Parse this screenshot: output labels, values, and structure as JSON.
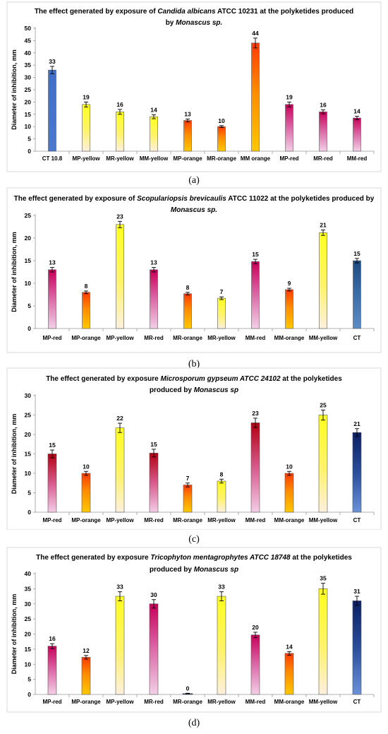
{
  "captions": [
    "(a)",
    "(b)",
    "(c)",
    "(d)"
  ],
  "chart_data": [
    {
      "type": "bar",
      "title_parts": [
        {
          "text": "The effect generated by exposure of ",
          "italic": false
        },
        {
          "text": "Candida albicans",
          "italic": true
        },
        {
          "text": " ATCC 10231 at the polyketides produced",
          "italic": false
        }
      ],
      "title_line2_parts": [
        {
          "text": "by ",
          "italic": false
        },
        {
          "text": "Monascus sp.",
          "italic": true
        }
      ],
      "ylabel": "Diameter of inhibition, mm",
      "ylim": [
        0,
        50
      ],
      "ytick_step": 5,
      "categories": [
        "CT 10.8",
        "MP-yellow",
        "MR-yellow",
        "MM-yellow",
        "MP-orange",
        "MR-orange",
        "MM orange",
        "MP-red",
        "MR-red",
        "MM-red"
      ],
      "values": [
        33,
        19,
        16,
        14,
        12.5,
        10,
        44,
        19,
        16,
        13.5
      ],
      "labels": [
        "33",
        "19",
        "16",
        "14",
        "13",
        "10",
        "44",
        "19",
        "16",
        "14"
      ],
      "errors": [
        1.5,
        1,
        1,
        0.8,
        0.6,
        0.4,
        2,
        1,
        0.8,
        0.7
      ],
      "colors": [
        "ct-blue",
        "yellow",
        "yellow",
        "yellow",
        "orange",
        "orange",
        "orange",
        "magenta",
        "magenta",
        "magenta"
      ]
    },
    {
      "type": "bar",
      "title_parts": [
        {
          "text": "The effect generated by exposure of ",
          "italic": false
        },
        {
          "text": "Scopulariopsis brevicaulis",
          "italic": true
        },
        {
          "text": " ATCC 11022 at the polyketides produced by",
          "italic": false
        }
      ],
      "title_line2_parts": [
        {
          "text": "Monascus sp.",
          "italic": true
        }
      ],
      "ylabel": "Diameter of inhibition, mm",
      "ylim": [
        0,
        25
      ],
      "ytick_step": 5,
      "categories": [
        "MP-red",
        "MP-orange",
        "MP-yellow",
        "MR-red",
        "MR-orange",
        "MR-yellow",
        "MM-red",
        "MM-orange",
        "MM-yellow",
        "CT"
      ],
      "values": [
        13,
        8,
        23,
        13,
        7.7,
        6.7,
        14.8,
        8.6,
        21.2,
        15
      ],
      "labels": [
        "13",
        "8",
        "23",
        "13",
        "8",
        "7",
        "15",
        "9",
        "21",
        "15"
      ],
      "errors": [
        0.5,
        0.3,
        0.7,
        0.5,
        0.3,
        0.3,
        0.5,
        0.3,
        0.6,
        0.5
      ],
      "colors": [
        "magenta",
        "orange",
        "yellow",
        "magenta",
        "orange",
        "yellow",
        "magenta",
        "orange",
        "yellow",
        "ct-dark"
      ]
    },
    {
      "type": "bar",
      "title_parts": [
        {
          "text": "The effect generated by exposure  ",
          "italic": false
        },
        {
          "text": "Microsporum gypseum ATCC 24102",
          "italic": true
        },
        {
          "text": " at the polyketides",
          "italic": false
        }
      ],
      "title_line2_parts": [
        {
          "text": "produced by ",
          "italic": false
        },
        {
          "text": "Monascus sp",
          "italic": true
        }
      ],
      "ylabel": "Diameter of inhibition, mm",
      "ylim": [
        0,
        30
      ],
      "ytick_step": 5,
      "categories": [
        "MP-red",
        "MP-orange",
        "MP-yellow",
        "MR-red",
        "MR-orange",
        "MR-yellow",
        "MM-red",
        "MM-orange",
        "MM-yellow",
        "CT"
      ],
      "values": [
        15,
        10,
        21.7,
        15.2,
        7,
        8,
        23,
        10,
        25,
        20.5
      ],
      "labels": [
        "15",
        "10",
        "22",
        "15",
        "7",
        "8",
        "23",
        "10",
        "25",
        "21"
      ],
      "errors": [
        1,
        0.5,
        1.2,
        1,
        0.5,
        0.5,
        1.2,
        0.5,
        1.3,
        1
      ],
      "colors": [
        "red",
        "orange",
        "yellow",
        "red",
        "orange",
        "yellow",
        "red",
        "orange",
        "yellow",
        "ct-navy"
      ]
    },
    {
      "type": "bar",
      "title_parts": [
        {
          "text": "The effect generated by exposure  ",
          "italic": false
        },
        {
          "text": "Tricophyton mentagrophytes ATCC 18748",
          "italic": true
        },
        {
          "text": " at the polyketides",
          "italic": false
        }
      ],
      "title_line2_parts": [
        {
          "text": "produced by ",
          "italic": false
        },
        {
          "text": "Monascus sp",
          "italic": true
        }
      ],
      "ylabel": "Diameter of inhibition, mm",
      "ylim": [
        0,
        40
      ],
      "ytick_step": 5,
      "categories": [
        "MP-red",
        "MP-orange",
        "MP-yellow",
        "MR-red",
        "MR-orange",
        "MR-yellow",
        "MM-red",
        "MM-orange",
        "MM-yellow",
        "CT"
      ],
      "values": [
        16,
        12.3,
        32.5,
        30,
        0.3,
        32.5,
        19.7,
        13.6,
        35,
        31
      ],
      "labels": [
        "16",
        "12",
        "33",
        "30",
        "0",
        "33",
        "20",
        "14",
        "35",
        "31"
      ],
      "errors": [
        0.8,
        0.6,
        1.5,
        1.4,
        0.1,
        1.5,
        0.9,
        0.6,
        1.8,
        1.5
      ],
      "colors": [
        "magenta",
        "orange",
        "yellow",
        "magenta",
        "navy-thin",
        "yellow",
        "magenta",
        "orange",
        "yellow",
        "ct-navy"
      ]
    }
  ]
}
